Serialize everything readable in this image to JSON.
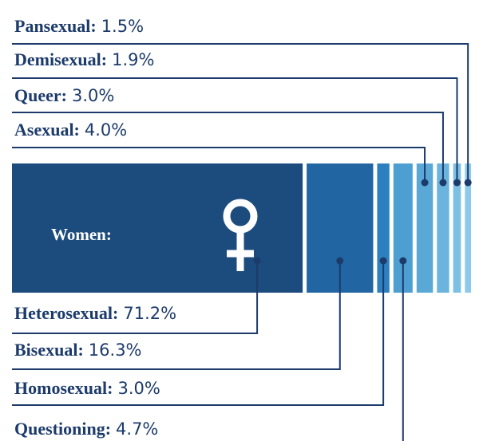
{
  "chart_data": {
    "type": "stacked-bar",
    "label": "Women:",
    "series": [
      {
        "name": "Heterosexual:",
        "color": "#1c4b7d",
        "values": [
          71.2
        ],
        "value_labels": [
          "71.2%"
        ]
      },
      {
        "name": "Bisexual:",
        "color": "#2166a3",
        "values": [
          16.3
        ],
        "value_labels": [
          "16.3%"
        ]
      },
      {
        "name": "Homosexual:",
        "color": "#2d80c0",
        "values": [
          3.0
        ],
        "value_labels": [
          "3.0%"
        ]
      },
      {
        "name": "Questioning:",
        "color": "#4d9fd2",
        "values": [
          4.7
        ],
        "value_labels": [
          "4.7%"
        ]
      },
      {
        "name": "Asexual:",
        "color": "#5aa8d6",
        "values": [
          4.0
        ],
        "value_labels": [
          "4.0%"
        ]
      },
      {
        "name": "Queer:",
        "color": "#6bb4dd",
        "values": [
          3.0
        ],
        "value_labels": [
          "3.0%"
        ]
      },
      {
        "name": "Demisexual:",
        "color": "#7cc0e4",
        "values": [
          1.9
        ],
        "value_labels": [
          "1.9%"
        ]
      },
      {
        "name": "Pansexual:",
        "color": "#8ccaea",
        "values": [
          1.5
        ],
        "value_labels": [
          "1.5%"
        ]
      }
    ]
  }
}
